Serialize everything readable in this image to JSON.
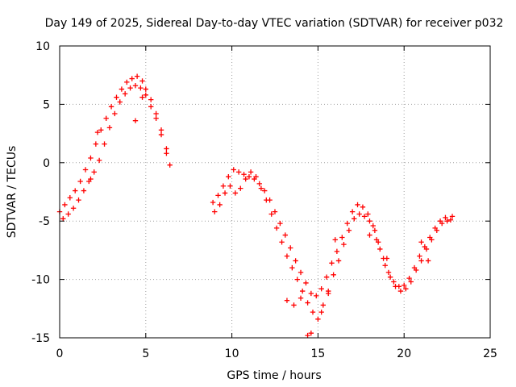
{
  "chart_data": {
    "type": "scatter",
    "title": "Day 149 of 2025, Sidereal Day-to-day VTEC variation (SDTVAR) for receiver p032",
    "xlabel": "GPS time / hours",
    "ylabel": "SDTVAR / TECUs",
    "xlim": [
      0,
      25
    ],
    "ylim": [
      -15,
      10
    ],
    "xticks": [
      0,
      5,
      10,
      15,
      20,
      25
    ],
    "xtick_labels": [
      "0",
      "5",
      "10",
      "15",
      "20",
      "25"
    ],
    "yticks": [
      -15,
      -10,
      -5,
      0,
      5,
      10
    ],
    "ytick_labels": [
      "-15",
      "-10",
      "-5",
      "0",
      "5",
      "10"
    ],
    "grid": true,
    "marker": "+",
    "color": "#ff0000",
    "series": [
      {
        "name": "segment-1",
        "x": [
          0.0,
          0.3,
          0.6,
          0.9,
          1.2,
          1.5,
          1.8,
          2.1,
          2.4,
          2.7,
          3.0,
          3.3,
          3.6,
          3.9,
          4.2,
          4.5,
          4.8,
          5.0,
          5.3,
          5.6,
          5.9,
          6.2,
          6.4
        ],
        "y": [
          -4.2,
          -3.6,
          -3.0,
          -2.4,
          -1.6,
          -0.6,
          0.4,
          1.6,
          2.8,
          3.8,
          4.8,
          5.6,
          6.3,
          6.9,
          7.2,
          7.4,
          7.0,
          6.3,
          5.4,
          4.2,
          2.8,
          1.2,
          -0.2
        ]
      },
      {
        "name": "segment-2",
        "x": [
          8.9,
          9.2,
          9.5,
          9.8,
          10.1,
          10.4,
          10.7,
          11.0,
          11.3,
          11.6,
          11.9,
          12.2,
          12.5,
          12.8,
          13.1,
          13.4,
          13.7,
          14.0,
          14.3,
          14.6,
          14.9,
          15.2,
          15.5,
          15.8,
          16.1,
          16.4,
          16.7,
          17.0,
          17.3,
          17.6,
          17.9,
          18.2,
          18.5,
          18.8,
          19.1,
          19.4,
          19.7,
          20.0,
          20.3,
          20.6,
          20.9,
          21.2,
          21.5,
          21.8,
          22.1,
          22.4,
          22.7
        ],
        "y": [
          -3.4,
          -2.8,
          -2.0,
          -1.2,
          -0.6,
          -0.8,
          -1.0,
          -1.2,
          -1.4,
          -1.8,
          -2.4,
          -3.2,
          -4.2,
          -5.2,
          -6.2,
          -7.3,
          -8.4,
          -9.4,
          -10.3,
          -11.2,
          -11.4,
          -10.8,
          -9.8,
          -8.6,
          -7.6,
          -6.4,
          -5.2,
          -4.2,
          -3.6,
          -3.8,
          -4.4,
          -5.4,
          -6.8,
          -8.2,
          -9.4,
          -10.2,
          -10.6,
          -10.5,
          -9.9,
          -9.0,
          -8.0,
          -7.2,
          -6.4,
          -5.6,
          -5.0,
          -4.7,
          -4.9
        ]
      },
      {
        "name": "segment-3",
        "x": [
          0.2,
          0.5,
          0.8,
          1.1,
          1.4,
          1.7,
          2.0,
          2.3,
          2.6,
          2.9,
          3.2,
          3.5,
          3.8,
          4.1,
          4.4,
          4.7,
          5.0,
          5.3,
          5.6,
          5.9,
          6.2
        ],
        "y": [
          -4.8,
          -4.4,
          -3.9,
          -3.2,
          -2.4,
          -1.6,
          -0.8,
          0.2,
          1.6,
          3.0,
          4.2,
          5.2,
          5.9,
          6.4,
          6.6,
          6.4,
          5.8,
          4.8,
          3.8,
          2.4,
          0.8
        ]
      },
      {
        "name": "segment-4",
        "x": [
          9.0,
          9.3,
          9.6,
          9.9,
          10.2,
          10.5,
          10.8,
          11.1,
          11.4,
          11.7,
          12.0,
          12.3,
          12.6,
          12.9,
          13.2,
          13.5,
          13.8,
          14.1,
          14.4,
          14.7,
          15.0,
          15.3,
          15.6,
          15.9,
          16.2,
          16.5,
          16.8,
          17.1,
          17.4,
          17.7,
          18.0,
          18.3,
          18.6,
          18.9,
          19.2,
          19.5,
          19.8,
          20.1,
          20.4,
          20.7,
          21.0,
          21.3,
          21.6,
          21.9,
          22.2,
          22.5,
          22.8
        ],
        "y": [
          -4.2,
          -3.6,
          -2.6,
          -2.0,
          -2.6,
          -2.2,
          -1.4,
          -0.8,
          -1.2,
          -2.2,
          -3.2,
          -4.4,
          -5.6,
          -6.8,
          -8.0,
          -9.0,
          -10.0,
          -11.0,
          -12.0,
          -12.8,
          -13.4,
          -12.2,
          -11.0,
          -9.6,
          -8.4,
          -7.0,
          -5.8,
          -4.8,
          -4.4,
          -4.6,
          -5.0,
          -5.8,
          -7.4,
          -8.8,
          -9.8,
          -10.6,
          -11.0,
          -10.8,
          -10.2,
          -9.2,
          -8.4,
          -7.4,
          -6.6,
          -5.8,
          -5.2,
          -5.0,
          -4.6
        ]
      },
      {
        "name": "segment-5",
        "x": [
          13.2,
          13.6,
          14.0,
          14.4,
          14.6,
          15.2,
          15.6,
          16.0,
          18.0,
          18.4,
          19.0,
          21.0,
          21.4,
          1.8,
          2.2,
          4.4,
          4.8
        ],
        "y": [
          -11.8,
          -12.2,
          -11.6,
          -14.8,
          -14.6,
          -12.8,
          -11.2,
          -6.6,
          -6.2,
          -6.6,
          -8.2,
          -6.8,
          -8.4,
          -1.4,
          2.6,
          3.6,
          5.6
        ]
      }
    ]
  }
}
